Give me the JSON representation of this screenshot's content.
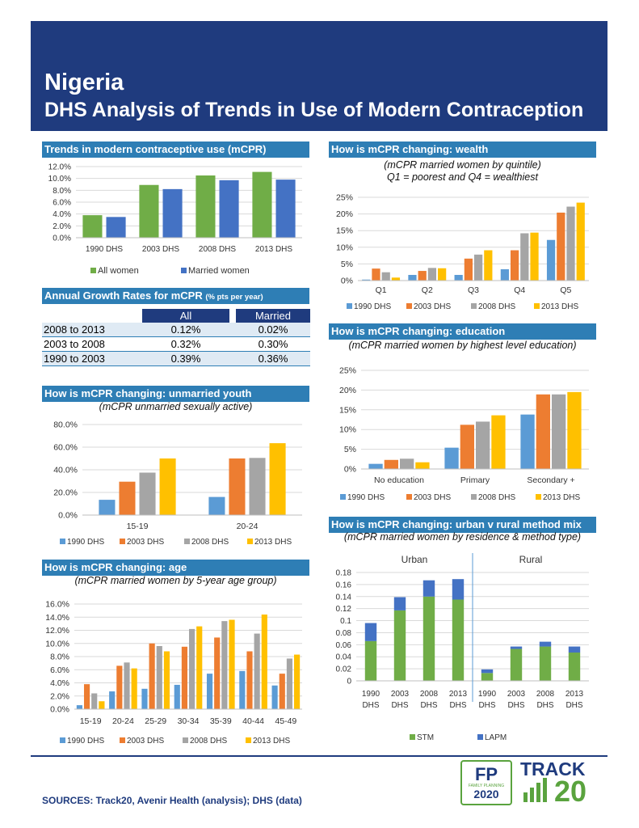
{
  "header": {
    "country": "Nigeria",
    "title": "DHS Analysis of Trends in Use of Modern Contraception"
  },
  "colors": {
    "navy": "#1f3b7e",
    "section_blue": "#2e7eb5",
    "green": "#70ad47",
    "blue": "#4472c4",
    "light_blue": "#5b9bd5",
    "orange": "#ed7d31",
    "gray": "#a5a5a5",
    "yellow": "#ffc000",
    "stm_green": "#70ad47",
    "lapm_blue": "#4472c4"
  },
  "sections": {
    "trends": "Trends in modern contraceptive use (mCPR)",
    "growth": "Annual Growth Rates for mCPR",
    "growth_small": "(% pts per year)",
    "youth": "How is mCPR changing: unmarried youth",
    "age": "How is mCPR changing: age",
    "wealth": "How is mCPR changing: wealth",
    "education": "How is mCPR changing: education",
    "urban_rural": "How is mCPR changing: urban v rural method mix"
  },
  "subtitles": {
    "youth": "(mCPR unmarried sexually active)",
    "age": "(mCPR married women by 5-year age group)",
    "wealth_1": "(mCPR married women by quintile)",
    "wealth_2": "Q1 = poorest and Q4 = wealthiest",
    "education": "(mCPR married women by highest level education)",
    "urban_rural": "(mCPR married women by residence & method type)"
  },
  "growth_table": {
    "headers": [
      "All",
      "Married"
    ],
    "rows": [
      {
        "label": "2008 to 2013",
        "all": "0.12%",
        "married": "0.02%"
      },
      {
        "label": "2003 to 2008",
        "all": "0.32%",
        "married": "0.30%"
      },
      {
        "label": "1990 to 2003",
        "all": "0.39%",
        "married": "0.36%"
      }
    ]
  },
  "footer": {
    "sources": "SOURCES: Track20, Avenir Health (analysis); DHS (data)"
  },
  "logos": {
    "fp_main": "FP",
    "fp_sub": "FAMILY PLANNING",
    "fp_year": "2020",
    "track": "TRACK",
    "track_num": "20"
  },
  "chart_data": [
    {
      "id": "trends",
      "type": "bar",
      "categories": [
        "1990 DHS",
        "2003 DHS",
        "2008 DHS",
        "2013 DHS"
      ],
      "series": [
        {
          "name": "All women",
          "color": "#70ad47",
          "values": [
            3.8,
            8.9,
            10.5,
            11.1
          ]
        },
        {
          "name": "Married women",
          "color": "#4472c4",
          "values": [
            3.5,
            8.2,
            9.7,
            9.8
          ]
        }
      ],
      "ylim": [
        0,
        12
      ],
      "yticks": [
        0,
        2,
        4,
        6,
        8,
        10,
        12
      ],
      "tick_format": "pct1",
      "legend": "bottom"
    },
    {
      "id": "youth",
      "type": "bar",
      "categories": [
        "15-19",
        "20-24"
      ],
      "series": [
        {
          "name": "1990 DHS",
          "color": "#5b9bd5",
          "values": [
            13.5,
            16
          ]
        },
        {
          "name": "2003 DHS",
          "color": "#ed7d31",
          "values": [
            29.5,
            50
          ]
        },
        {
          "name": "2008 DHS",
          "color": "#a5a5a5",
          "values": [
            37.5,
            50.5
          ]
        },
        {
          "name": "2013 DHS",
          "color": "#ffc000",
          "values": [
            50,
            63.5
          ]
        }
      ],
      "ylim": [
        0,
        80
      ],
      "yticks": [
        0,
        20,
        40,
        60,
        80
      ],
      "tick_format": "pct1",
      "legend": "bottom"
    },
    {
      "id": "age",
      "type": "bar",
      "categories": [
        "15-19",
        "20-24",
        "25-29",
        "30-34",
        "35-39",
        "40-44",
        "45-49"
      ],
      "series": [
        {
          "name": "1990 DHS",
          "color": "#5b9bd5",
          "values": [
            0.6,
            2.7,
            3.1,
            3.7,
            5.4,
            5.8,
            3.6
          ]
        },
        {
          "name": "2003 DHS",
          "color": "#ed7d31",
          "values": [
            3.8,
            6.6,
            10.0,
            9.5,
            10.9,
            8.8,
            5.4
          ]
        },
        {
          "name": "2008 DHS",
          "color": "#a5a5a5",
          "values": [
            2.4,
            7.1,
            9.6,
            12.2,
            13.4,
            11.5,
            7.7
          ]
        },
        {
          "name": "2013 DHS",
          "color": "#ffc000",
          "values": [
            1.2,
            6.2,
            8.8,
            12.6,
            13.6,
            14.4,
            8.3
          ]
        }
      ],
      "ylim": [
        0,
        16
      ],
      "yticks": [
        0,
        2,
        4,
        6,
        8,
        10,
        12,
        14,
        16
      ],
      "tick_format": "pct1",
      "legend": "bottom"
    },
    {
      "id": "wealth",
      "type": "bar",
      "categories": [
        "Q1",
        "Q2",
        "Q3",
        "Q4",
        "Q5"
      ],
      "series": [
        {
          "name": "1990 DHS",
          "color": "#5b9bd5",
          "values": [
            0.3,
            1.7,
            1.7,
            3.4,
            12.2
          ]
        },
        {
          "name": "2003 DHS",
          "color": "#ed7d31",
          "values": [
            3.6,
            2.9,
            6.6,
            9.1,
            20.4
          ]
        },
        {
          "name": "2008 DHS",
          "color": "#a5a5a5",
          "values": [
            2.5,
            3.8,
            7.8,
            14.2,
            22.2
          ]
        },
        {
          "name": "2013 DHS",
          "color": "#ffc000",
          "values": [
            0.9,
            3.7,
            9.1,
            14.4,
            23.4
          ]
        }
      ],
      "ylim": [
        0,
        25
      ],
      "yticks": [
        0,
        5,
        10,
        15,
        20,
        25
      ],
      "tick_format": "pct0",
      "legend": "bottom"
    },
    {
      "id": "education",
      "type": "bar",
      "categories": [
        "No education",
        "Primary",
        "Secondary +"
      ],
      "series": [
        {
          "name": "1990 DHS",
          "color": "#5b9bd5",
          "values": [
            1.3,
            5.4,
            13.8
          ]
        },
        {
          "name": "2003 DHS",
          "color": "#ed7d31",
          "values": [
            2.3,
            11.2,
            18.9
          ]
        },
        {
          "name": "2008 DHS",
          "color": "#a5a5a5",
          "values": [
            2.6,
            12.0,
            18.9
          ]
        },
        {
          "name": "2013 DHS",
          "color": "#ffc000",
          "values": [
            1.7,
            13.6,
            19.5
          ]
        }
      ],
      "ylim": [
        0,
        25
      ],
      "yticks": [
        0,
        5,
        10,
        15,
        20,
        25
      ],
      "tick_format": "pct0",
      "legend": "bottom"
    },
    {
      "id": "urban_rural",
      "type": "bar",
      "stacked": true,
      "group_labels": [
        "Urban",
        "Rural"
      ],
      "categories": [
        "1990 DHS",
        "2003 DHS",
        "2008 DHS",
        "2013 DHS",
        "1990 DHS",
        "2003 DHS",
        "2008 DHS",
        "2013 DHS"
      ],
      "series": [
        {
          "name": "STM",
          "color": "#70ad47",
          "values": [
            0.066,
            0.117,
            0.14,
            0.135,
            0.013,
            0.053,
            0.057,
            0.047
          ]
        },
        {
          "name": "LAPM",
          "color": "#4472c4",
          "values": [
            0.03,
            0.022,
            0.027,
            0.034,
            0.006,
            0.004,
            0.008,
            0.01
          ]
        }
      ],
      "ylim": [
        0,
        0.18
      ],
      "yticks": [
        0,
        0.02,
        0.04,
        0.06,
        0.08,
        0.1,
        0.12,
        0.14,
        0.16,
        0.18
      ],
      "tick_format": "dec",
      "legend": "bottom"
    }
  ]
}
